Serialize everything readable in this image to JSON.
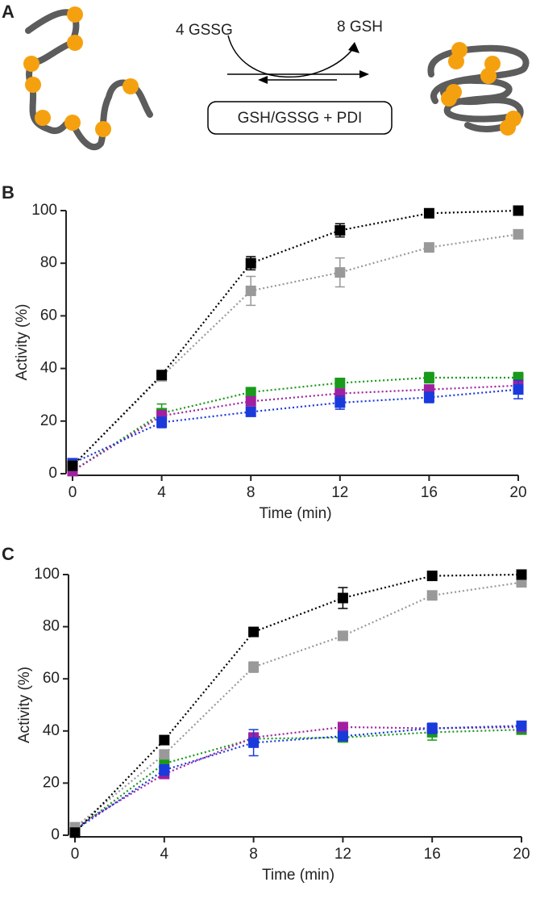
{
  "panel_labels": [
    "A",
    "B",
    "C"
  ],
  "diagram": {
    "reactant": "4 GSSG",
    "product": "8 GSH",
    "condition": "GSH/GSSG + PDI"
  },
  "chart_data": [
    {
      "type": "line",
      "xlabel": "Time (min)",
      "ylabel": "Activity (%)",
      "x": [
        0,
        4,
        8,
        12,
        16,
        20
      ],
      "xlim": [
        0,
        20
      ],
      "xticks": [
        0,
        4,
        8,
        12,
        16,
        20
      ],
      "ylim": [
        0,
        100
      ],
      "yticks": [
        0,
        20,
        40,
        60,
        80,
        100
      ],
      "series": [
        {
          "color": "#1a9a1a",
          "values": [
            1,
            23,
            31,
            34.5,
            36.5,
            36.5
          ],
          "errors": [
            1,
            3.5,
            1.5,
            1.5,
            2,
            2
          ]
        },
        {
          "color": "#a020a0",
          "values": [
            1,
            22,
            27.5,
            30.5,
            32,
            33.5
          ],
          "errors": [
            1,
            2,
            1.5,
            1.5,
            1.5,
            1.5
          ]
        },
        {
          "color": "#1a3adc",
          "values": [
            4,
            19.5,
            23.5,
            27,
            29,
            32
          ],
          "errors": [
            1,
            2,
            1.5,
            2.5,
            2,
            3.5
          ]
        },
        {
          "color": "#999999",
          "values": [
            3,
            37,
            69.5,
            76.5,
            86,
            91
          ],
          "errors": [
            1,
            1,
            5.5,
            5.5,
            1,
            1
          ]
        },
        {
          "color": "#000000",
          "values": [
            3,
            37.5,
            80,
            92.5,
            99,
            100
          ],
          "errors": [
            1,
            1.5,
            2.5,
            2.5,
            1,
            0.5
          ]
        }
      ]
    },
    {
      "type": "line",
      "xlabel": "Time (min)",
      "ylabel": "Activity (%)",
      "x": [
        0,
        4,
        8,
        12,
        16,
        20
      ],
      "xlim": [
        0,
        20
      ],
      "xticks": [
        0,
        4,
        8,
        12,
        16,
        20
      ],
      "ylim": [
        0,
        100
      ],
      "yticks": [
        0,
        20,
        40,
        60,
        80,
        100
      ],
      "series": [
        {
          "color": "#1a9a1a",
          "values": [
            2,
            27.5,
            37,
            37.5,
            39.5,
            40.5
          ],
          "errors": [
            0.5,
            1,
            1,
            1,
            3,
            1
          ]
        },
        {
          "color": "#a020a0",
          "values": [
            3,
            23.5,
            37.5,
            41.5,
            41,
            41.5
          ],
          "errors": [
            0.5,
            1,
            1,
            1,
            1,
            1
          ]
        },
        {
          "color": "#1a3adc",
          "values": [
            2,
            25,
            35.5,
            38,
            41,
            42
          ],
          "errors": [
            0.5,
            2,
            5,
            1.5,
            2,
            1.5
          ]
        },
        {
          "color": "#999999",
          "values": [
            3,
            31,
            64.5,
            76.5,
            92,
            97
          ],
          "errors": [
            1,
            1,
            2,
            1,
            1,
            1
          ]
        },
        {
          "color": "#000000",
          "values": [
            1,
            36.5,
            78,
            91,
            99.5,
            100
          ],
          "errors": [
            0.5,
            1,
            1,
            4,
            1,
            0.5
          ]
        }
      ]
    }
  ]
}
